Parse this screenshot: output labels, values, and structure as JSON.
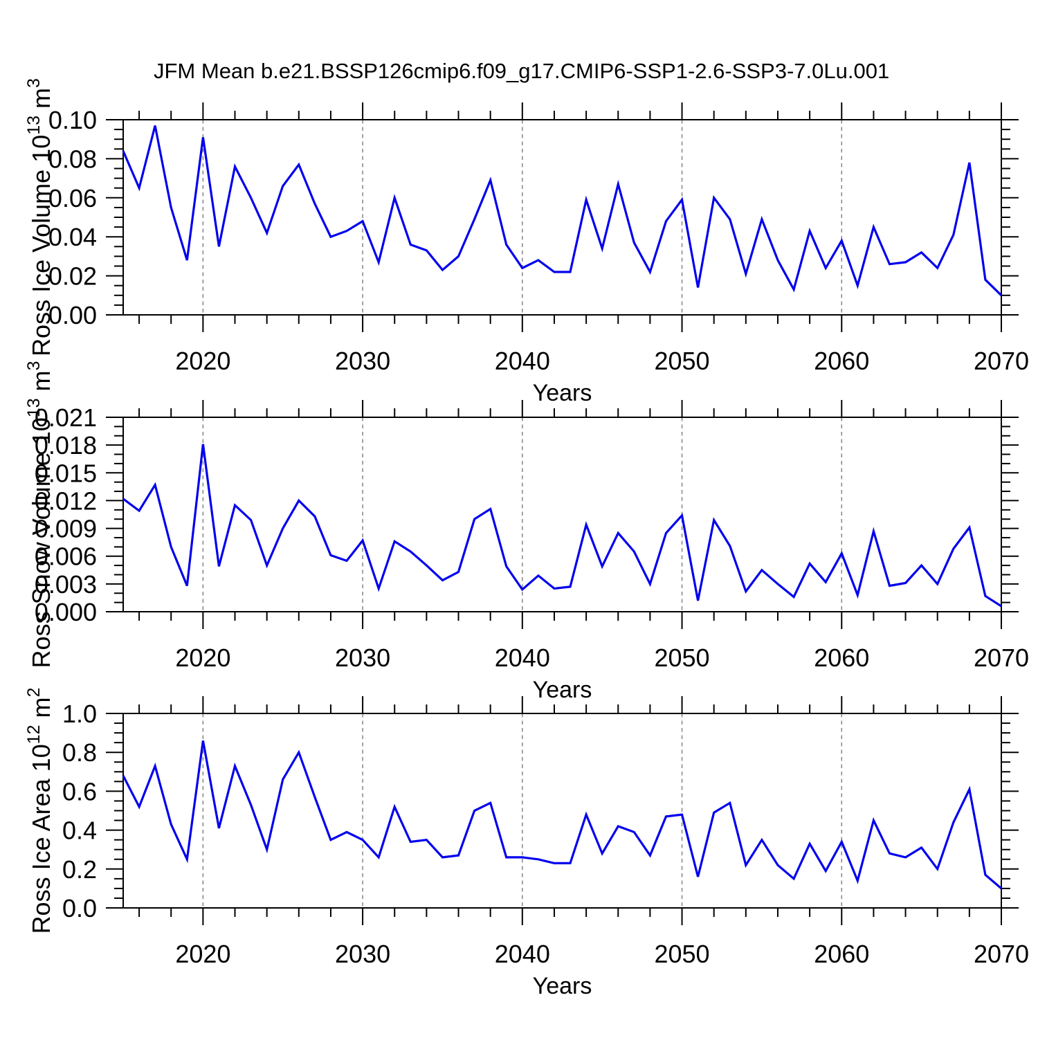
{
  "title": "JFM Mean b.e21.BSSP126cmip6.f09_g17.CMIP6-SSP1-2.6-SSP3-7.0Lu.001",
  "x_axis": {
    "label": "Years",
    "labeled_ticks": [
      {
        "v": 2020,
        "label": "2020"
      },
      {
        "v": 2030,
        "label": "2030"
      },
      {
        "v": 2040,
        "label": "2040"
      },
      {
        "v": 2050,
        "label": "2050"
      },
      {
        "v": 2060,
        "label": "2060"
      },
      {
        "v": 2070,
        "label": "2070"
      }
    ],
    "minor_tick_step_years": 2,
    "gridline_years": [
      2020,
      2030,
      2040,
      2050,
      2060
    ],
    "range": [
      2015,
      2070
    ]
  },
  "style": {
    "line_color": "#0000EE",
    "axis_color": "#000000",
    "gridline_color": "#848484",
    "text_color": "#000000",
    "background": "#ffffff"
  },
  "chart_data": [
    {
      "type": "line",
      "name": "ross-ice-volume",
      "ylabel": "Ross Ice Volume 10^13 m^3",
      "ylabel_segments": [
        [
          "t",
          "Ross Ice Volume 10"
        ],
        [
          "s",
          "13"
        ],
        [
          "t",
          " m"
        ],
        [
          "s",
          "3"
        ]
      ],
      "xlabel": "Years",
      "ylim": [
        0,
        0.1
      ],
      "y_ticks": [
        {
          "v": 0.0,
          "label": "0.00"
        },
        {
          "v": 0.02,
          "label": "0.02"
        },
        {
          "v": 0.04,
          "label": "0.04"
        },
        {
          "v": 0.06,
          "label": "0.06"
        },
        {
          "v": 0.08,
          "label": "0.08"
        },
        {
          "v": 0.1,
          "label": "0.10"
        }
      ],
      "y_minor_step": 0.005,
      "years": [
        2015,
        2016,
        2017,
        2018,
        2019,
        2020,
        2021,
        2022,
        2023,
        2024,
        2025,
        2026,
        2027,
        2028,
        2029,
        2030,
        2031,
        2032,
        2033,
        2034,
        2035,
        2036,
        2037,
        2038,
        2039,
        2040,
        2041,
        2042,
        2043,
        2044,
        2045,
        2046,
        2047,
        2048,
        2049,
        2050,
        2051,
        2052,
        2053,
        2054,
        2055,
        2056,
        2057,
        2058,
        2059,
        2060,
        2061,
        2062,
        2063,
        2064,
        2065,
        2066,
        2067,
        2068,
        2069,
        2070
      ],
      "values": [
        0.084,
        0.065,
        0.097,
        0.055,
        0.028,
        0.091,
        0.035,
        0.076,
        0.06,
        0.042,
        0.066,
        0.077,
        0.057,
        0.04,
        0.043,
        0.048,
        0.027,
        0.06,
        0.036,
        0.033,
        0.023,
        0.03,
        0.049,
        0.069,
        0.036,
        0.024,
        0.028,
        0.022,
        0.022,
        0.059,
        0.034,
        0.067,
        0.037,
        0.022,
        0.048,
        0.059,
        0.014,
        0.06,
        0.049,
        0.021,
        0.049,
        0.028,
        0.013,
        0.043,
        0.024,
        0.038,
        0.015,
        0.045,
        0.026,
        0.027,
        0.032,
        0.024,
        0.041,
        0.078,
        0.018,
        0.01
      ]
    },
    {
      "type": "line",
      "name": "ross-snow-volume",
      "ylabel": "Ross Snow Volume 10^13 m^3",
      "ylabel_segments": [
        [
          "t",
          "Ross Snow Volume 10"
        ],
        [
          "s",
          "13"
        ],
        [
          "t",
          " m"
        ],
        [
          "s",
          "3"
        ]
      ],
      "xlabel": "Years",
      "ylim": [
        0,
        0.021
      ],
      "y_ticks": [
        {
          "v": 0.0,
          "label": "0.000"
        },
        {
          "v": 0.003,
          "label": "0.003"
        },
        {
          "v": 0.006,
          "label": "0.006"
        },
        {
          "v": 0.009,
          "label": "0.009"
        },
        {
          "v": 0.012,
          "label": "0.012"
        },
        {
          "v": 0.015,
          "label": "0.015"
        },
        {
          "v": 0.018,
          "label": "0.018"
        },
        {
          "v": 0.021,
          "label": "0.021"
        }
      ],
      "y_minor_step": 0.001,
      "years": [
        2015,
        2016,
        2017,
        2018,
        2019,
        2020,
        2021,
        2022,
        2023,
        2024,
        2025,
        2026,
        2027,
        2028,
        2029,
        2030,
        2031,
        2032,
        2033,
        2034,
        2035,
        2036,
        2037,
        2038,
        2039,
        2040,
        2041,
        2042,
        2043,
        2044,
        2045,
        2046,
        2047,
        2048,
        2049,
        2050,
        2051,
        2052,
        2053,
        2054,
        2055,
        2056,
        2057,
        2058,
        2059,
        2060,
        2061,
        2062,
        2063,
        2064,
        2065,
        2066,
        2067,
        2068,
        2069,
        2070
      ],
      "values": [
        0.0122,
        0.0109,
        0.0137,
        0.007,
        0.0028,
        0.0181,
        0.0049,
        0.0115,
        0.0099,
        0.005,
        0.009,
        0.012,
        0.0103,
        0.0061,
        0.0055,
        0.0077,
        0.0025,
        0.0076,
        0.0065,
        0.005,
        0.0034,
        0.0043,
        0.01,
        0.0111,
        0.0049,
        0.0024,
        0.0039,
        0.0025,
        0.0027,
        0.0094,
        0.0049,
        0.0085,
        0.0065,
        0.003,
        0.0085,
        0.0104,
        0.0012,
        0.0099,
        0.0071,
        0.0022,
        0.0045,
        0.003,
        0.0016,
        0.0052,
        0.0032,
        0.0063,
        0.0018,
        0.0087,
        0.0028,
        0.0031,
        0.005,
        0.003,
        0.0068,
        0.0091,
        0.0017,
        0.0006
      ]
    },
    {
      "type": "line",
      "name": "ross-ice-area",
      "ylabel": "Ross Ice Area 10^12 m^2",
      "ylabel_segments": [
        [
          "t",
          "Ross Ice Area 10"
        ],
        [
          "s",
          "12"
        ],
        [
          "t",
          " m"
        ],
        [
          "s",
          "2"
        ]
      ],
      "xlabel": "Years",
      "ylim": [
        0,
        1.0
      ],
      "y_ticks": [
        {
          "v": 0.0,
          "label": "0.0"
        },
        {
          "v": 0.2,
          "label": "0.2"
        },
        {
          "v": 0.4,
          "label": "0.4"
        },
        {
          "v": 0.6,
          "label": "0.6"
        },
        {
          "v": 0.8,
          "label": "0.8"
        },
        {
          "v": 1.0,
          "label": "1.0"
        }
      ],
      "y_minor_step": 0.05,
      "years": [
        2015,
        2016,
        2017,
        2018,
        2019,
        2020,
        2021,
        2022,
        2023,
        2024,
        2025,
        2026,
        2027,
        2028,
        2029,
        2030,
        2031,
        2032,
        2033,
        2034,
        2035,
        2036,
        2037,
        2038,
        2039,
        2040,
        2041,
        2042,
        2043,
        2044,
        2045,
        2046,
        2047,
        2048,
        2049,
        2050,
        2051,
        2052,
        2053,
        2054,
        2055,
        2056,
        2057,
        2058,
        2059,
        2060,
        2061,
        2062,
        2063,
        2064,
        2065,
        2066,
        2067,
        2068,
        2069,
        2070
      ],
      "values": [
        0.68,
        0.52,
        0.73,
        0.43,
        0.25,
        0.86,
        0.41,
        0.73,
        0.53,
        0.3,
        0.66,
        0.8,
        0.57,
        0.35,
        0.39,
        0.35,
        0.26,
        0.52,
        0.34,
        0.35,
        0.26,
        0.27,
        0.5,
        0.54,
        0.26,
        0.26,
        0.25,
        0.23,
        0.23,
        0.48,
        0.28,
        0.42,
        0.39,
        0.27,
        0.47,
        0.48,
        0.16,
        0.49,
        0.54,
        0.22,
        0.35,
        0.22,
        0.15,
        0.33,
        0.19,
        0.34,
        0.14,
        0.45,
        0.28,
        0.26,
        0.31,
        0.2,
        0.44,
        0.61,
        0.17,
        0.1
      ]
    }
  ]
}
